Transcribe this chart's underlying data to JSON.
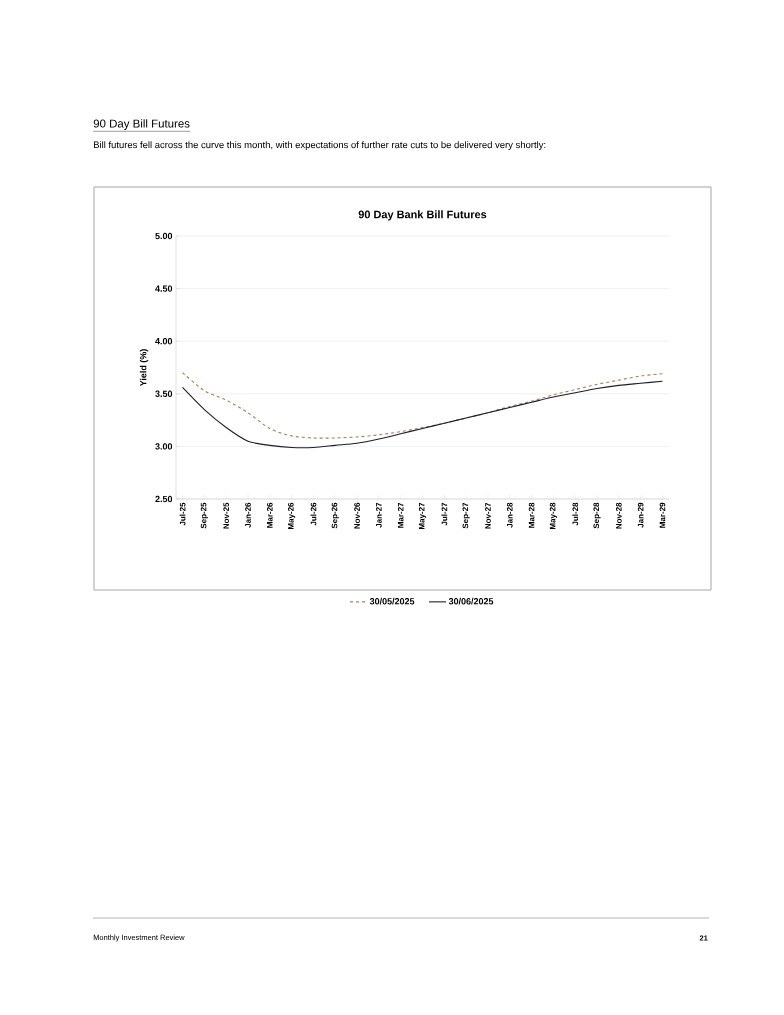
{
  "chart_data": {
    "type": "line",
    "title": "90 Day Bank Bill Futures",
    "ylabel": "Yield (%)",
    "categories": [
      "Jul-25",
      "Sep-25",
      "Nov-25",
      "Jan-26",
      "Mar-26",
      "May-26",
      "Jul-26",
      "Sep-26",
      "Nov-26",
      "Jan-27",
      "Mar-27",
      "May-27",
      "Jul-27",
      "Sep-27",
      "Nov-27",
      "Jan-28",
      "Mar-28",
      "May-28",
      "Jul-28",
      "Sep-28",
      "Nov-28",
      "Jan-29",
      "Mar-29"
    ],
    "series": [
      {
        "name": "30/05/2025",
        "color": "#b07a52",
        "line_style": "dashed",
        "values": [
          3.7,
          3.53,
          3.44,
          3.32,
          3.17,
          3.1,
          3.08,
          3.08,
          3.09,
          3.11,
          3.14,
          3.18,
          3.22,
          3.27,
          3.32,
          3.38,
          3.43,
          3.49,
          3.54,
          3.59,
          3.63,
          3.67,
          3.69
        ]
      },
      {
        "name": "30/06/2025",
        "color": "#1c1c2c",
        "line_style": "solid",
        "values": [
          3.56,
          3.35,
          3.18,
          3.05,
          3.01,
          2.99,
          2.99,
          3.01,
          3.03,
          3.07,
          3.12,
          3.17,
          3.22,
          3.27,
          3.32,
          3.37,
          3.42,
          3.47,
          3.51,
          3.55,
          3.58,
          3.6,
          3.62
        ]
      }
    ],
    "ylim": [
      2.5,
      5.0
    ],
    "yticks": [
      {
        "value": 2.5,
        "label": "2.50"
      },
      {
        "value": 3.0,
        "label": "3.00"
      },
      {
        "value": 3.5,
        "label": "3.50"
      },
      {
        "value": 4.0,
        "label": "4.00"
      },
      {
        "value": 4.5,
        "label": "4.50"
      },
      {
        "value": 5.0,
        "label": "5.00"
      }
    ],
    "grid": "y",
    "legend": "bottom",
    "marker": "none",
    "annotations": [
      "90 Day Bill Futures",
      "Bill futures fell across the curve this month, with expectations of further rate cuts to be delivered very shortly:",
      "Monthly Investment Review",
      "21"
    ]
  }
}
